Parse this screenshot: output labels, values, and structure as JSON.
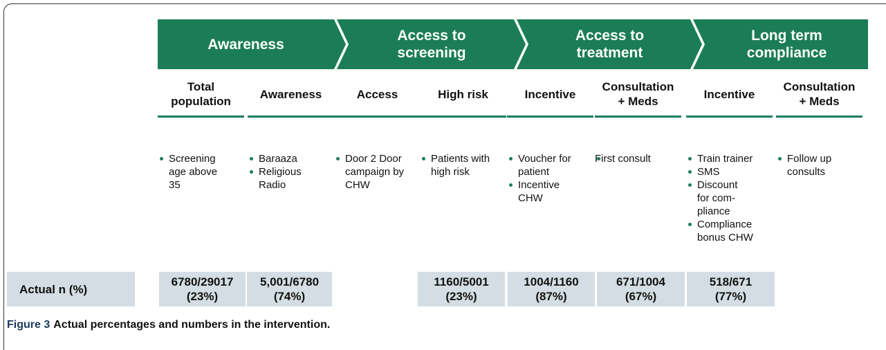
{
  "stages": [
    {
      "title": [
        "Awareness"
      ]
    },
    {
      "title": [
        "Access to",
        "screening"
      ]
    },
    {
      "title": [
        "Access to",
        "treatment"
      ]
    },
    {
      "title": [
        "Long term",
        "compliance"
      ]
    }
  ],
  "columns": [
    {
      "header": [
        "Total",
        "population"
      ],
      "bullets": [
        [
          "Screening",
          "age above",
          "35"
        ]
      ]
    },
    {
      "header": [
        "Awareness"
      ],
      "bullets": [
        [
          "Baraaza"
        ],
        [
          "Religious",
          "Radio"
        ]
      ]
    },
    {
      "header": [
        "Access"
      ],
      "bullets": [
        [
          "Door 2 Door",
          "campaign by",
          "CHW"
        ]
      ]
    },
    {
      "header": [
        "High risk"
      ],
      "bullets": [
        [
          "Patients with",
          "high risk"
        ]
      ]
    },
    {
      "header": [
        "Incentive"
      ],
      "bullets": [
        [
          "Voucher for",
          "patient"
        ],
        [
          "Incentive",
          "CHW"
        ]
      ]
    },
    {
      "header": [
        "Consultation",
        "+ Meds"
      ],
      "note": [
        "First consult"
      ]
    },
    {
      "header": [
        "Incentive"
      ],
      "bullets": [
        [
          "Train trainer"
        ],
        [
          "SMS"
        ],
        [
          "Discount",
          "for com-",
          "pliance"
        ],
        [
          "Compliance",
          "bonus CHW"
        ]
      ]
    },
    {
      "header": [
        "Consultation",
        "+ Meds"
      ],
      "bullets": [
        [
          "Follow up",
          "consults"
        ]
      ]
    }
  ],
  "actual": {
    "label": "Actual n (%)",
    "values": [
      [
        "6780/29017",
        "(23%)"
      ],
      [
        "5,001/6780",
        "(74%)"
      ],
      [
        "1160/5001",
        "(23%)"
      ],
      [
        "1004/1160",
        "(87%)"
      ],
      [
        "671/1004",
        "(67%)"
      ],
      [
        "518/671",
        "(77%)"
      ]
    ]
  },
  "caption": {
    "label": "Figure 3",
    "text": "Actual percentages and numbers in the intervention."
  }
}
